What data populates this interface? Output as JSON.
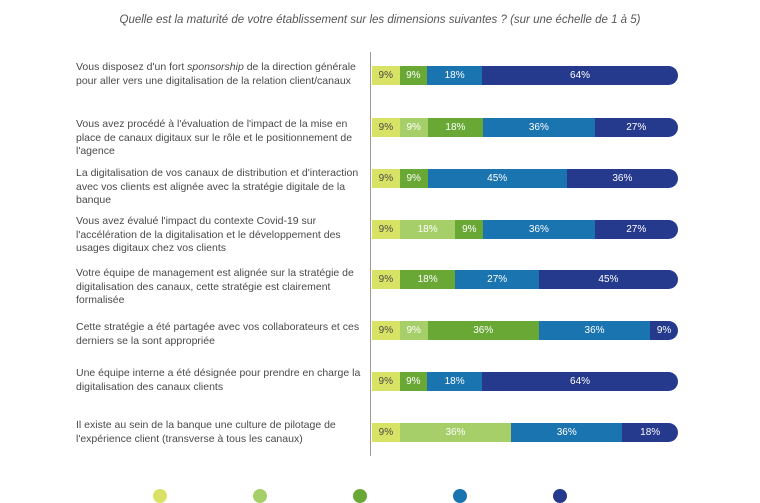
{
  "title": "Quelle est la maturité de votre établissement sur les dimensions suivantes ? (sur une échelle de 1 à 5)",
  "chart_data": {
    "type": "bar",
    "orientation": "horizontal-stacked-100",
    "title": "Quelle est la maturité de votre établissement sur les dimensions suivantes ? (sur une échelle de 1 à 5)",
    "xlabel": "",
    "ylabel": "",
    "series": [
      {
        "name": "",
        "color": "#d8e264",
        "text_color": "#4a4a4a"
      },
      {
        "name": "",
        "color": "#a6cf6a",
        "text_color": "#ffffff"
      },
      {
        "name": "",
        "color": "#6aa835",
        "text_color": "#ffffff"
      },
      {
        "name": "",
        "color": "#1a74b0",
        "text_color": "#ffffff"
      },
      {
        "name": "",
        "color": "#253a8c",
        "text_color": "#ffffff"
      }
    ],
    "rows": [
      {
        "label": "Vous disposez d'un fort ",
        "label_em": "sponsorship",
        "label_rest": " de la direction générale pour aller vers une digitalisation de la relation client/canaux",
        "segments": [
          {
            "s": 0,
            "v": 9
          },
          {
            "s": 2,
            "v": 9
          },
          {
            "s": 3,
            "v": 18
          },
          {
            "s": 4,
            "v": 64
          }
        ]
      },
      {
        "label": "Vous avez procédé à l'évaluation de l'impact de la mise en place de canaux digitaux sur le rôle et le positionnement de l'agence",
        "segments": [
          {
            "s": 0,
            "v": 9
          },
          {
            "s": 1,
            "v": 9
          },
          {
            "s": 2,
            "v": 18
          },
          {
            "s": 3,
            "v": 36
          },
          {
            "s": 4,
            "v": 27
          }
        ]
      },
      {
        "label": "La digitalisation de vos canaux de distribution et d'interaction avec vos clients est alignée avec la stratégie digitale de la banque",
        "segments": [
          {
            "s": 0,
            "v": 9
          },
          {
            "s": 2,
            "v": 9
          },
          {
            "s": 3,
            "v": 45
          },
          {
            "s": 4,
            "v": 36
          }
        ]
      },
      {
        "label": "Vous avez évalué l'impact du contexte Covid-19 sur l'accélération de la digitalisation et le développement des usages digitaux chez vos clients",
        "segments": [
          {
            "s": 0,
            "v": 9
          },
          {
            "s": 1,
            "v": 18
          },
          {
            "s": 2,
            "v": 9
          },
          {
            "s": 3,
            "v": 36
          },
          {
            "s": 4,
            "v": 27
          }
        ]
      },
      {
        "label": "Votre équipe de management est alignée sur la stratégie de digitalisation des canaux, cette stratégie est clairement formalisée",
        "segments": [
          {
            "s": 0,
            "v": 9
          },
          {
            "s": 2,
            "v": 18
          },
          {
            "s": 3,
            "v": 27
          },
          {
            "s": 4,
            "v": 45
          }
        ]
      },
      {
        "label": "Cette stratégie a été partagée avec vos collaborateurs et ces derniers se la sont appropriée",
        "segments": [
          {
            "s": 0,
            "v": 9
          },
          {
            "s": 1,
            "v": 9
          },
          {
            "s": 2,
            "v": 36
          },
          {
            "s": 3,
            "v": 36
          },
          {
            "s": 4,
            "v": 9
          }
        ]
      },
      {
        "label": "Une équipe interne a été désignée pour prendre en charge la digitalisation des canaux clients",
        "segments": [
          {
            "s": 0,
            "v": 9
          },
          {
            "s": 2,
            "v": 9
          },
          {
            "s": 3,
            "v": 18
          },
          {
            "s": 4,
            "v": 64
          }
        ]
      },
      {
        "label": "Il existe au sein de la banque une culture de pilotage de l'expérience client (transverse à tous les canaux)",
        "segments": [
          {
            "s": 0,
            "v": 9
          },
          {
            "s": 1,
            "v": 36
          },
          {
            "s": 3,
            "v": 36
          },
          {
            "s": 4,
            "v": 18
          }
        ]
      }
    ],
    "xlim": [
      0,
      100
    ],
    "grid": false,
    "legend": "bottom"
  }
}
